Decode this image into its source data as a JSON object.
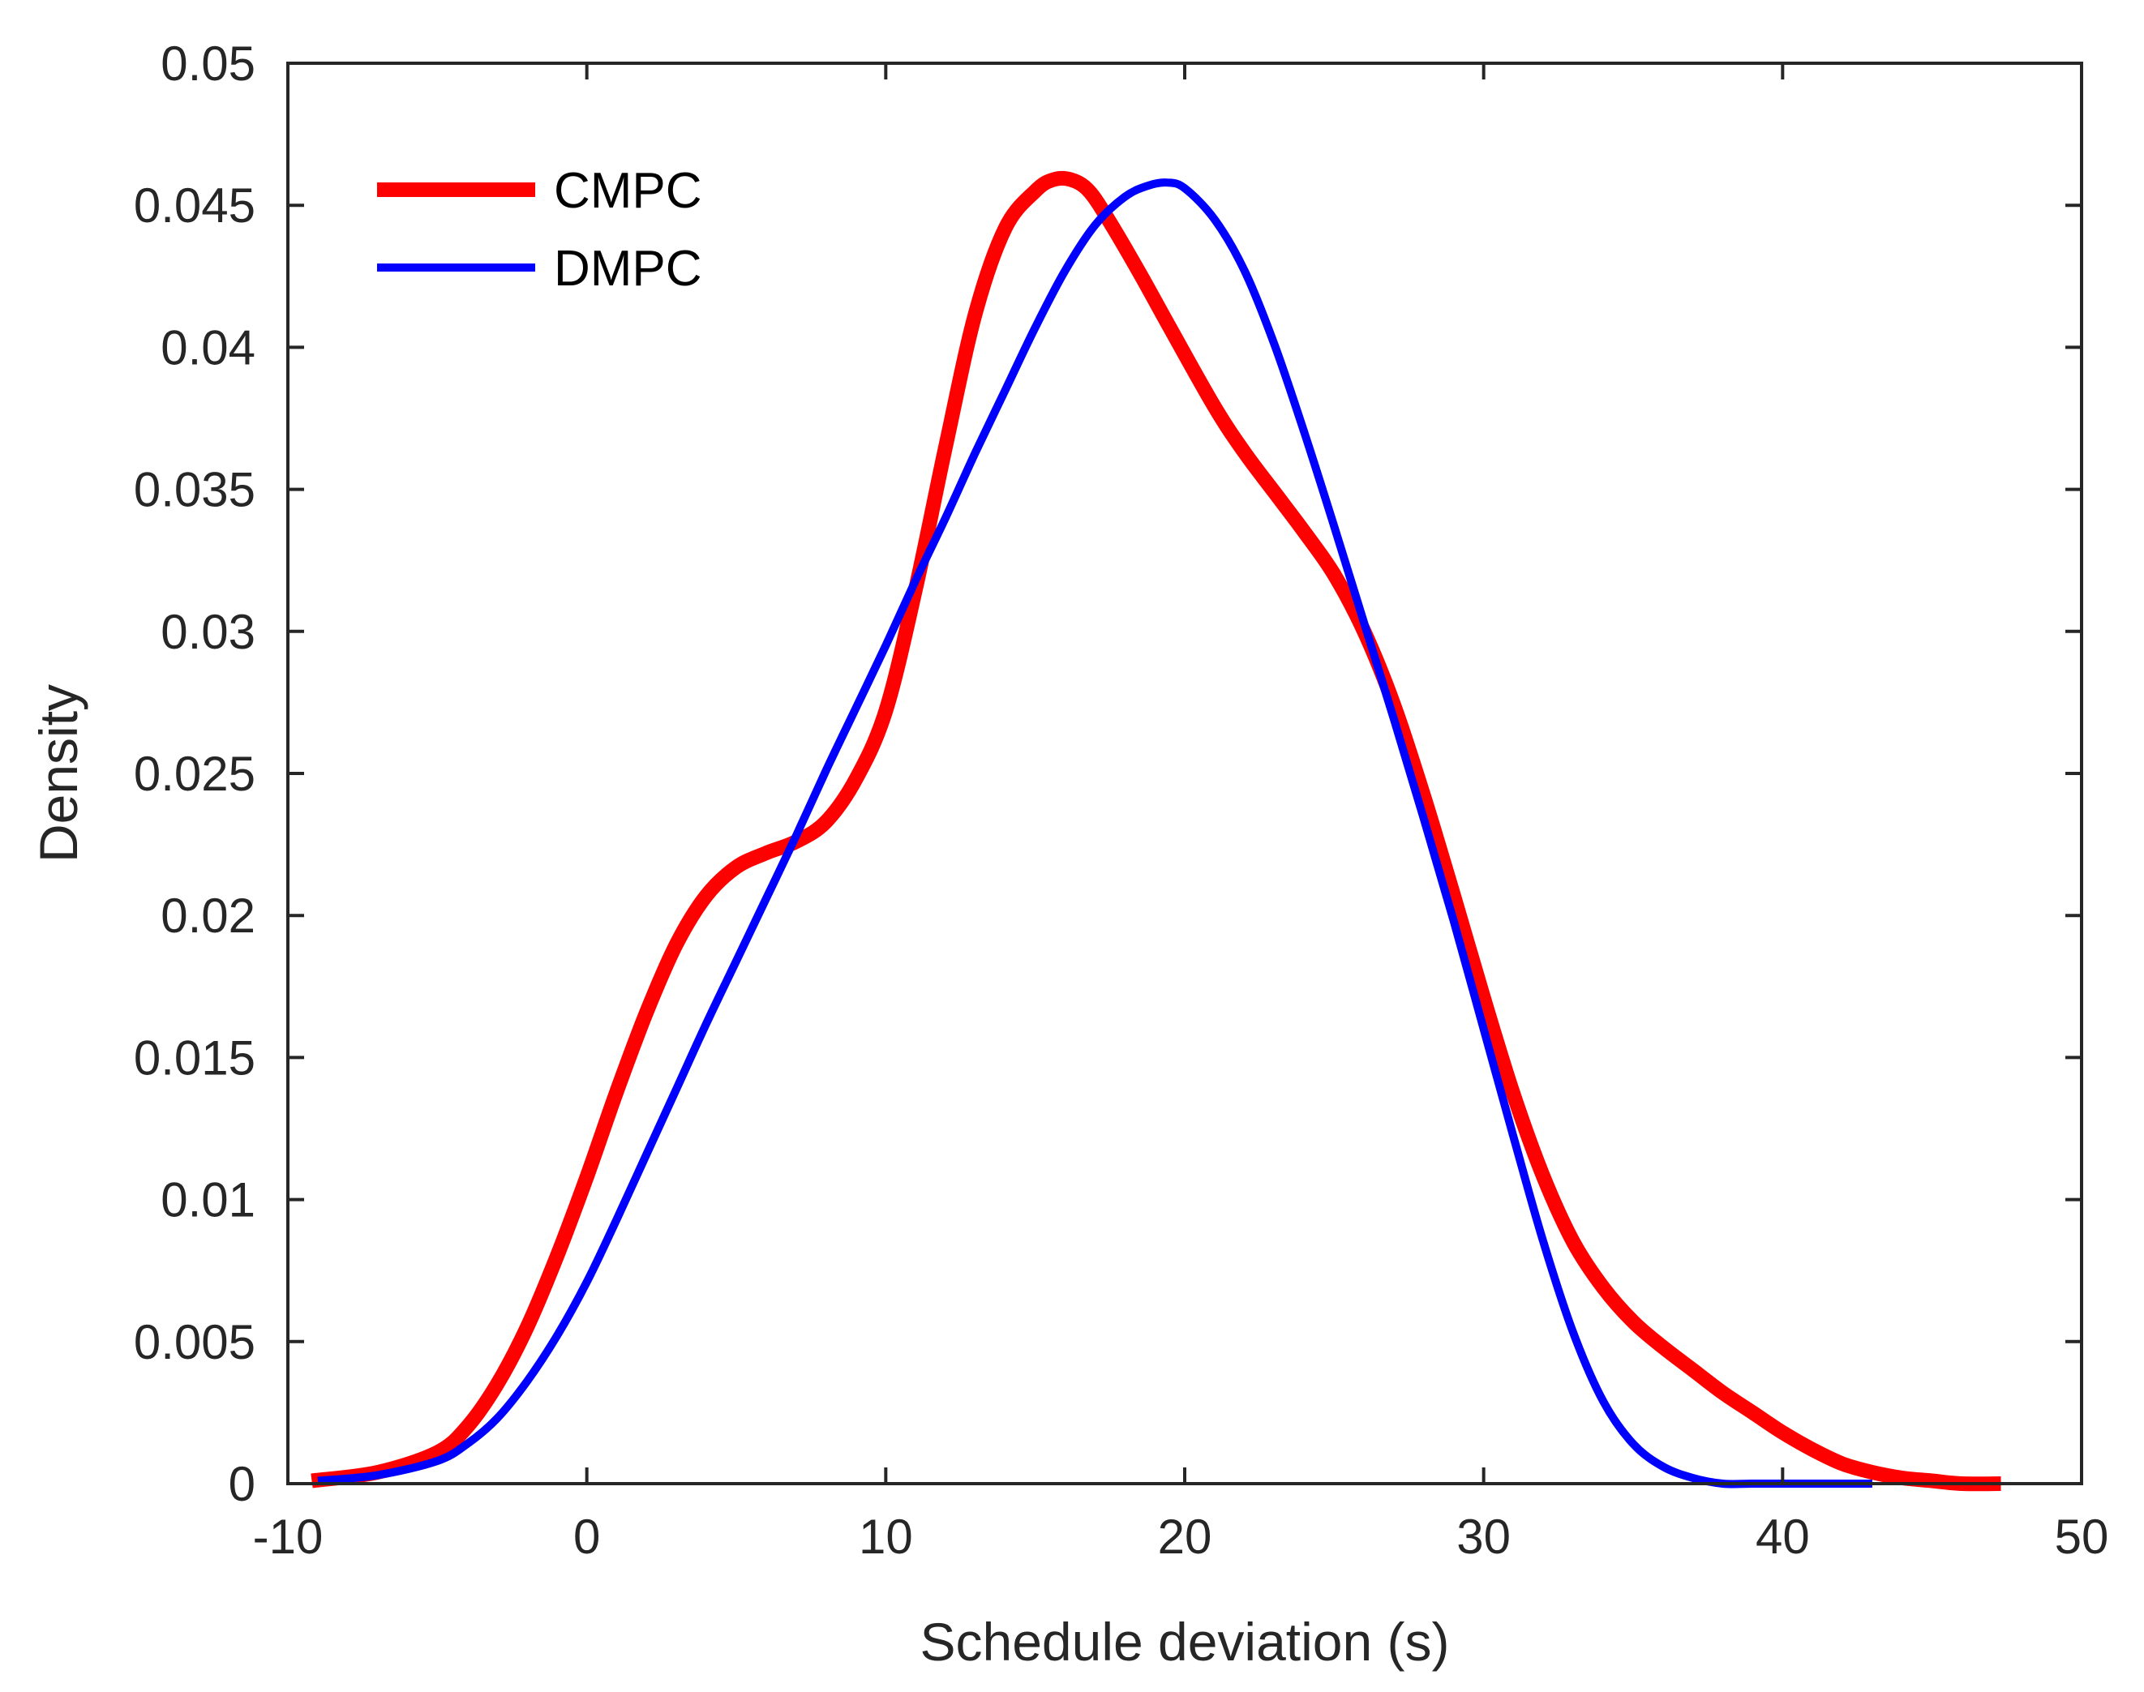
{
  "chart_data": {
    "type": "line",
    "title": "",
    "xlabel": "Schedule deviation (s)",
    "ylabel": "Density",
    "xlim": [
      -10,
      50
    ],
    "ylim": [
      0,
      0.05
    ],
    "grid": false,
    "legend_position": "top-left",
    "x_ticks": [
      {
        "value": -10,
        "label": "-10"
      },
      {
        "value": 0,
        "label": "0"
      },
      {
        "value": 10,
        "label": "10"
      },
      {
        "value": 20,
        "label": "20"
      },
      {
        "value": 30,
        "label": "30"
      },
      {
        "value": 40,
        "label": "40"
      },
      {
        "value": 50,
        "label": "50"
      }
    ],
    "y_ticks": [
      {
        "value": 0,
        "label": "0"
      },
      {
        "value": 0.005,
        "label": "0.005"
      },
      {
        "value": 0.01,
        "label": "0.01"
      },
      {
        "value": 0.015,
        "label": "0.015"
      },
      {
        "value": 0.02,
        "label": "0.02"
      },
      {
        "value": 0.025,
        "label": "0.025"
      },
      {
        "value": 0.03,
        "label": "0.03"
      },
      {
        "value": 0.035,
        "label": "0.035"
      },
      {
        "value": 0.04,
        "label": "0.04"
      },
      {
        "value": 0.045,
        "label": "0.045"
      },
      {
        "value": 0.05,
        "label": "0.05"
      }
    ],
    "series": [
      {
        "name": "CMPC",
        "color": "#ff0000",
        "x": [
          -9.2,
          -7,
          -5,
          -4,
          -3,
          -2,
          -1,
          0,
          1,
          2,
          3,
          4,
          5,
          6,
          7,
          8,
          9,
          10,
          11,
          12,
          13,
          14,
          15,
          15.6,
          16.2,
          16.8,
          17.5,
          18.5,
          19.5,
          21,
          22,
          23,
          24,
          25,
          26,
          27,
          28,
          29,
          30,
          31,
          32,
          33,
          34,
          35,
          36,
          37,
          38,
          39,
          40,
          41,
          42,
          43,
          44,
          45,
          46,
          47.3
        ],
        "values": [
          0.0001,
          0.0004,
          0.0011,
          0.002,
          0.0035,
          0.0055,
          0.008,
          0.0108,
          0.0138,
          0.0166,
          0.019,
          0.0207,
          0.0217,
          0.0222,
          0.0226,
          0.0233,
          0.0248,
          0.0272,
          0.0315,
          0.0365,
          0.0412,
          0.0442,
          0.0455,
          0.0459,
          0.0459,
          0.0455,
          0.0444,
          0.0426,
          0.0407,
          0.0379,
          0.0363,
          0.0349,
          0.0335,
          0.032,
          0.03,
          0.0274,
          0.0242,
          0.0207,
          0.0171,
          0.0137,
          0.0108,
          0.0085,
          0.0069,
          0.0057,
          0.0048,
          0.004,
          0.0032,
          0.0025,
          0.0018,
          0.0012,
          0.0007,
          0.0004,
          0.0002,
          0.0001,
          0.0,
          0.0
        ]
      },
      {
        "name": "DMPC",
        "color": "#0000ff",
        "x": [
          -9,
          -7,
          -5,
          -4,
          -3,
          -2,
          -1,
          0,
          1,
          2,
          3,
          4,
          5,
          6,
          7,
          8,
          9,
          10,
          11,
          12,
          13,
          14,
          15,
          16,
          17,
          18,
          18.8,
          19.4,
          20,
          21,
          22,
          23,
          24,
          25,
          26,
          27,
          28,
          29,
          30,
          31,
          32,
          33,
          34,
          35,
          36,
          37,
          38,
          39,
          40,
          41,
          42,
          43
        ],
        "values": [
          0.0001,
          0.0003,
          0.0008,
          0.0014,
          0.0023,
          0.0036,
          0.0052,
          0.0071,
          0.0093,
          0.0116,
          0.0139,
          0.0162,
          0.0184,
          0.0206,
          0.0228,
          0.0251,
          0.0273,
          0.0295,
          0.0318,
          0.034,
          0.0363,
          0.0385,
          0.0407,
          0.0427,
          0.0443,
          0.0453,
          0.0457,
          0.0458,
          0.0456,
          0.0445,
          0.0427,
          0.0401,
          0.037,
          0.0337,
          0.0303,
          0.0269,
          0.0234,
          0.0198,
          0.016,
          0.0122,
          0.0085,
          0.0053,
          0.0029,
          0.0014,
          0.0006,
          0.0002,
          0.0,
          0.0,
          0.0,
          0.0,
          0.0,
          0.0
        ]
      }
    ]
  }
}
